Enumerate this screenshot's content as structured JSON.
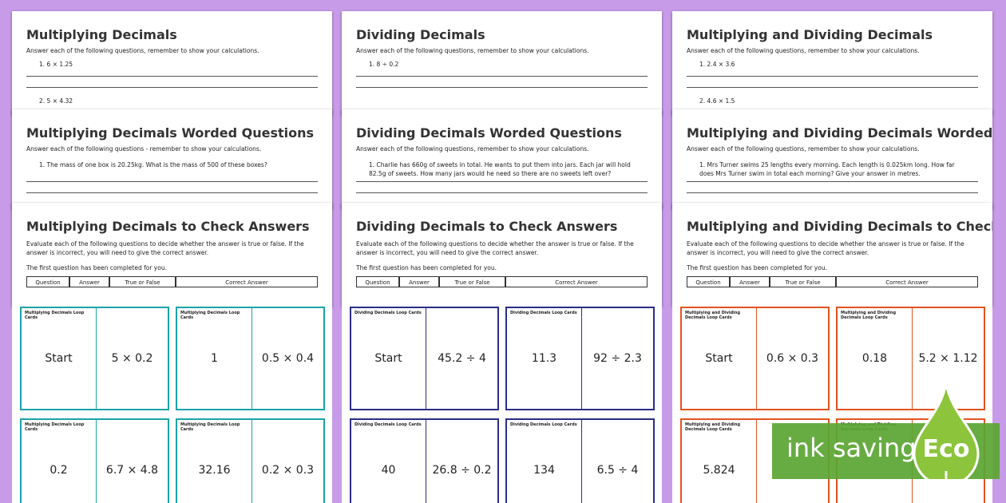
{
  "columns": [
    {
      "sheets": [
        {
          "title": "Multiplying Decimals",
          "instruction": "Answer each of the following questions, remember to show your calculations.",
          "questions": [
            "1.  6 × 1.25",
            "2.  5 × 4.32"
          ]
        },
        {
          "title": "Multiplying Decimals Worded Questions",
          "instruction": "Answer each of the following questions - remember to show your calculations.",
          "questions": [
            "1.  The mass of one box is 20.25kg. What is the mass of 500 of these boxes?"
          ]
        },
        {
          "title": "Multiplying Decimals to Check Answers",
          "instruction": "Evaluate each of the following questions to decide whether the answer is true or false. If the answer is incorrect, you will need to give the correct answer.",
          "note": "The first question has been completed for you.",
          "table_header": [
            "Question",
            "Answer",
            "True or False",
            "Correct Answer"
          ]
        }
      ],
      "loop": {
        "header": "Multiplying Decimals Loop Cards",
        "color": "#1aa3a8",
        "cards": [
          {
            "left": "Start",
            "right": "5 × 0.2"
          },
          {
            "left": "1",
            "right": "0.5 × 0.4"
          },
          {
            "left": "0.2",
            "right": "6.7 × 4.8"
          },
          {
            "left": "32.16",
            "right": "0.2 × 0.3"
          }
        ]
      }
    },
    {
      "sheets": [
        {
          "title": "Dividing Decimals",
          "instruction": "Answer each of the following questions, remember to show your calculations.",
          "questions": [
            "1.  8 ÷ 0.2"
          ]
        },
        {
          "title": "Dividing Decimals Worded Questions",
          "instruction": "Answer each of the following questions, remember to show your calculations.",
          "questions": [
            "1.  Charlie has 660g of sweets in total. He wants to put them into jars. Each jar will hold 82.5g of sweets. How many jars would he need so there are no sweets left over?"
          ]
        },
        {
          "title": "Dividing Decimals to Check Answers",
          "instruction": "Evaluate each of the following questions to decide whether the answer is true or false. If the answer is incorrect, you will need to give the correct answer.",
          "note": "The first question has been completed for you.",
          "table_header": [
            "Question",
            "Answer",
            "True or False",
            "Correct Answer"
          ]
        }
      ],
      "loop": {
        "header": "Dividing Decimals Loop Cards",
        "color": "#2a2d86",
        "cards": [
          {
            "left": "Start",
            "right": "45.2 ÷ 4"
          },
          {
            "left": "11.3",
            "right": "92 ÷ 2.3"
          },
          {
            "left": "40",
            "right": "26.8 ÷ 0.2"
          },
          {
            "left": "134",
            "right": "6.5 ÷ 4"
          }
        ]
      }
    },
    {
      "sheets": [
        {
          "title": "Multiplying and Dividing Decimals",
          "instruction": "Answer each of the following questions, remember to show your calculations.",
          "questions": [
            "1.  2.4 × 3.6",
            "2.  4.6 × 1.5"
          ]
        },
        {
          "title": "Multiplying and Dividing Decimals Worded Questions",
          "instruction": "Answer each of the following questions, remember to show your calculations.",
          "questions": [
            "1.  Mrs Turner swims 25 lengths every morning. Each length is 0.025km long. How far does Mrs Turner swim in total each morning? Give your answer in metres."
          ]
        },
        {
          "title": "Multiplying and Dividing Decimals to Check Answers",
          "instruction": "Evaluate each of the following questions to decide whether the answer is true or false. If the answer is incorrect, you will need to give the correct answer.",
          "note": "The first question has been completed for you.",
          "table_header": [
            "Question",
            "Answer",
            "True or False",
            "Correct Answer"
          ]
        }
      ],
      "loop": {
        "header": "Multiplying and Dividing Decimals Loop Cards",
        "color": "#e2531f",
        "cards": [
          {
            "left": "Start",
            "right": "0.6 × 0.3"
          },
          {
            "left": "0.18",
            "right": "5.2 × 1.12"
          },
          {
            "left": "5.824"
          },
          {}
        ]
      }
    }
  ],
  "badge": {
    "text": "ink saving",
    "label": "Eco"
  }
}
